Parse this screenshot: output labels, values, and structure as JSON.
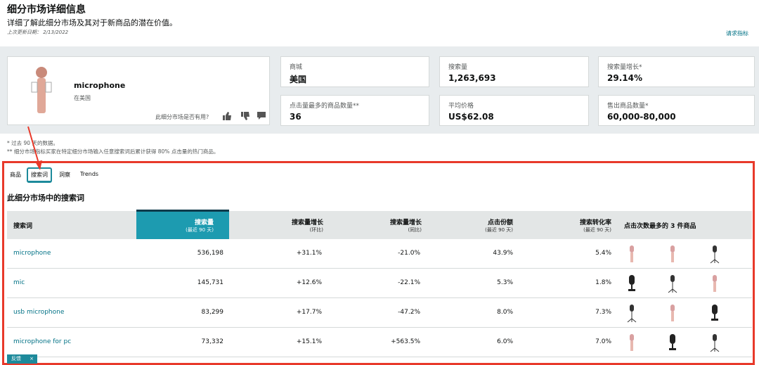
{
  "header": {
    "title": "细分市场详细信息",
    "subtitle": "详细了解此细分市场及其对于新商品的潜在价值。",
    "updated": "上次更新日期： 2/13/2022",
    "request": "请求指标"
  },
  "product": {
    "name": "microphone",
    "location": "在美国",
    "feedback_question": "此细分市场是否有用?"
  },
  "metrics": [
    {
      "label": "商城",
      "value": "美国"
    },
    {
      "label": "搜索量",
      "value": "1,263,693"
    },
    {
      "label": "搜索量增长*",
      "value": "29.14%"
    },
    {
      "label": "点击量最多的商品数量**",
      "value": "36"
    },
    {
      "label": "平均价格",
      "value": "US$62.08"
    },
    {
      "label": "售出商品数量*",
      "value": "60,000-80,000"
    }
  ],
  "notes": [
    "* 过去 90 天的数据。",
    "** 细分市场指标买家在特定细分市场输入任意搜索词后累计获得 80% 点击量的热门商品。"
  ],
  "tabs": [
    "商品",
    "搜索词",
    "洞察",
    "Trends"
  ],
  "section_title": "此细分市场中的搜索词",
  "table": {
    "headers": [
      {
        "title": "搜索词"
      },
      {
        "title": "搜索量",
        "sub": "(最近 90 天)"
      },
      {
        "title": "搜索量增长",
        "sub": "(环比)"
      },
      {
        "title": "搜索量增长",
        "sub": "(同比)"
      },
      {
        "title": "点击份额",
        "sub": "(最近 90 天)"
      },
      {
        "title": "搜索转化率",
        "sub": "(最近 90 天)"
      },
      {
        "title": "点击次数最多的 3 件商品"
      }
    ],
    "rows": [
      [
        "microphone",
        "536,198",
        "+31.1%",
        "-21.0%",
        "43.9%",
        "5.4%"
      ],
      [
        "mic",
        "145,731",
        "+12.6%",
        "-22.1%",
        "5.3%",
        "1.8%"
      ],
      [
        "usb microphone",
        "83,299",
        "+17.7%",
        "-47.2%",
        "8.0%",
        "7.3%"
      ],
      [
        "microphone for pc",
        "73,332",
        "+15.1%",
        "+563.5%",
        "6.0%",
        "7.0%"
      ]
    ]
  },
  "feedback_button": "反馈"
}
